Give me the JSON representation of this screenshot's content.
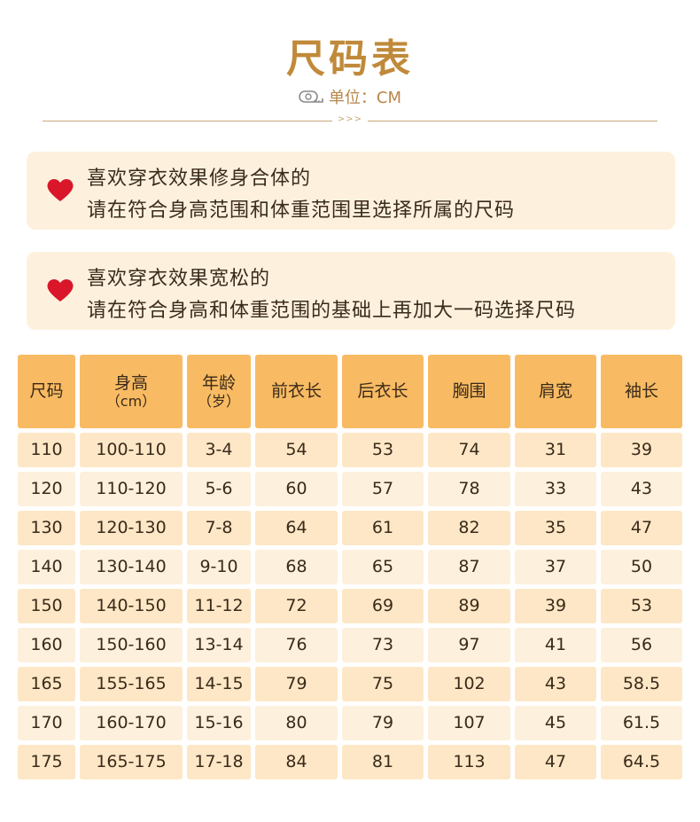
{
  "title": "尺码表",
  "unit": "单位：CM",
  "divider_mark": ">>>",
  "tips": [
    {
      "line1": "喜欢穿衣效果修身合体的",
      "line2": "请在符合身高范围和体重范围里选择所属的尺码"
    },
    {
      "line1": "喜欢穿衣效果宽松的",
      "line2": "请在符合身高和体重范围的基础上再加大一码选择尺码"
    }
  ],
  "colors": {
    "accent": "#c08a3a",
    "header_bg": "#f8bb63",
    "row_odd": "#fde7c6",
    "row_even": "#fdf0dc",
    "heart": "#d9162a"
  },
  "table": {
    "headers": [
      {
        "main": "尺码",
        "sub": ""
      },
      {
        "main": "身高",
        "sub": "（cm）"
      },
      {
        "main": "年龄",
        "sub": "（岁）"
      },
      {
        "main": "前衣长",
        "sub": ""
      },
      {
        "main": "后衣长",
        "sub": ""
      },
      {
        "main": "胸围",
        "sub": ""
      },
      {
        "main": "肩宽",
        "sub": ""
      },
      {
        "main": "袖长",
        "sub": ""
      }
    ],
    "rows": [
      [
        "110",
        "100-110",
        "3-4",
        "54",
        "53",
        "74",
        "31",
        "39"
      ],
      [
        "120",
        "110-120",
        "5-6",
        "60",
        "57",
        "78",
        "33",
        "43"
      ],
      [
        "130",
        "120-130",
        "7-8",
        "64",
        "61",
        "82",
        "35",
        "47"
      ],
      [
        "140",
        "130-140",
        "9-10",
        "68",
        "65",
        "87",
        "37",
        "50"
      ],
      [
        "150",
        "140-150",
        "11-12",
        "72",
        "69",
        "89",
        "39",
        "53"
      ],
      [
        "160",
        "150-160",
        "13-14",
        "76",
        "73",
        "97",
        "41",
        "56"
      ],
      [
        "165",
        "155-165",
        "14-15",
        "79",
        "75",
        "102",
        "43",
        "58.5"
      ],
      [
        "170",
        "160-170",
        "15-16",
        "80",
        "79",
        "107",
        "45",
        "61.5"
      ],
      [
        "175",
        "165-175",
        "17-18",
        "84",
        "81",
        "113",
        "47",
        "64.5"
      ]
    ]
  }
}
